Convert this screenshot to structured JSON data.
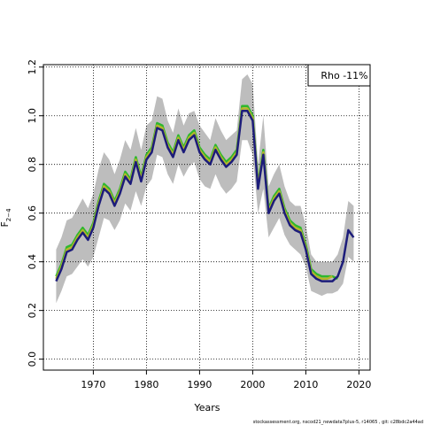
{
  "chart_data": {
    "type": "line",
    "ylabel": "F",
    "ylabel_subscript": "2−4",
    "xlabel": "Years",
    "annotation": "Rho -11%",
    "caption": "stockassessment.org, nscod21_newdata7plus-5, r14065 , git: c28bdc2a44ad",
    "x": [
      1963,
      1964,
      1965,
      1966,
      1967,
      1968,
      1969,
      1970,
      1971,
      1972,
      1973,
      1974,
      1975,
      1976,
      1977,
      1978,
      1979,
      1980,
      1981,
      1982,
      1983,
      1984,
      1985,
      1986,
      1987,
      1988,
      1989,
      1990,
      1991,
      1992,
      1993,
      1994,
      1995,
      1996,
      1997,
      1998,
      1999,
      2000,
      2001,
      2002,
      2003,
      2004,
      2005,
      2006,
      2007,
      2008,
      2009,
      2010,
      2011,
      2012,
      2013,
      2014,
      2015,
      2016,
      2017,
      2018,
      2019
    ],
    "band_color": "#bdbdbd",
    "upper": [
      0.45,
      0.5,
      0.57,
      0.58,
      0.62,
      0.66,
      0.62,
      0.68,
      0.78,
      0.85,
      0.82,
      0.76,
      0.82,
      0.9,
      0.86,
      0.95,
      0.86,
      0.96,
      0.98,
      1.08,
      1.07,
      0.98,
      0.93,
      1.03,
      0.96,
      1.01,
      1.02,
      0.96,
      0.93,
      0.9,
      0.99,
      0.94,
      0.9,
      0.92,
      0.94,
      1.15,
      1.17,
      1.13,
      0.8,
      1.0,
      0.71,
      0.76,
      0.8,
      0.71,
      0.65,
      0.63,
      0.63,
      0.55,
      0.43,
      0.4,
      0.4,
      0.4,
      0.4,
      0.43,
      0.5,
      0.65,
      0.63
    ],
    "lower": [
      0.23,
      0.28,
      0.34,
      0.35,
      0.38,
      0.41,
      0.38,
      0.42,
      0.5,
      0.58,
      0.57,
      0.53,
      0.57,
      0.64,
      0.61,
      0.69,
      0.63,
      0.71,
      0.74,
      0.84,
      0.83,
      0.76,
      0.72,
      0.8,
      0.75,
      0.79,
      0.81,
      0.74,
      0.71,
      0.7,
      0.76,
      0.71,
      0.68,
      0.7,
      0.73,
      0.9,
      0.9,
      0.84,
      0.6,
      0.7,
      0.5,
      0.54,
      0.58,
      0.51,
      0.47,
      0.45,
      0.43,
      0.38,
      0.28,
      0.27,
      0.26,
      0.27,
      0.27,
      0.28,
      0.31,
      0.42,
      0.4
    ],
    "series": [
      {
        "color": "#2db82d",
        "values": [
          0.34,
          0.39,
          0.46,
          0.47,
          0.51,
          0.54,
          0.51,
          0.56,
          0.65,
          0.72,
          0.7,
          0.65,
          0.7,
          0.77,
          0.74,
          0.83,
          0.75,
          0.84,
          0.87,
          0.97,
          0.96,
          0.89,
          0.85,
          0.92,
          0.87,
          0.92,
          0.94,
          0.87,
          0.84,
          0.82,
          0.88,
          0.84,
          0.81,
          0.83,
          0.86,
          1.04,
          1.04,
          1.0,
          0.72,
          0.86,
          0.62,
          0.67,
          0.7,
          0.62,
          0.57,
          0.55,
          0.54,
          0.47,
          0.37,
          0.35,
          0.34,
          0.34,
          0.34,
          0.33,
          null,
          null,
          null
        ]
      },
      {
        "color": "#b5b52a",
        "values": [
          0.33,
          0.38,
          0.45,
          0.46,
          0.5,
          0.53,
          0.5,
          0.55,
          0.64,
          0.71,
          0.69,
          0.64,
          0.69,
          0.76,
          0.73,
          0.82,
          0.74,
          0.83,
          0.86,
          0.96,
          0.95,
          0.88,
          0.84,
          0.91,
          0.86,
          0.91,
          0.93,
          0.86,
          0.83,
          0.81,
          0.87,
          0.83,
          0.8,
          0.82,
          0.85,
          1.03,
          1.03,
          0.99,
          0.71,
          0.85,
          0.61,
          0.66,
          0.69,
          0.61,
          0.56,
          0.54,
          0.53,
          0.46,
          0.36,
          0.34,
          0.33,
          0.33,
          0.34,
          null,
          null,
          null,
          null
        ]
      },
      {
        "color": "#1c1c7a",
        "values": [
          0.32,
          0.37,
          0.44,
          0.45,
          0.49,
          0.52,
          0.49,
          0.54,
          0.63,
          0.7,
          0.68,
          0.63,
          0.68,
          0.75,
          0.72,
          0.81,
          0.73,
          0.82,
          0.85,
          0.95,
          0.94,
          0.87,
          0.83,
          0.9,
          0.85,
          0.9,
          0.92,
          0.85,
          0.82,
          0.8,
          0.86,
          0.82,
          0.79,
          0.81,
          0.84,
          1.02,
          1.02,
          0.98,
          0.7,
          0.84,
          0.6,
          0.65,
          0.68,
          0.6,
          0.55,
          0.53,
          0.52,
          0.45,
          0.35,
          0.33,
          0.32,
          0.32,
          0.32,
          0.34,
          0.4,
          0.53,
          0.5
        ]
      }
    ],
    "xlim": [
      1960.6,
      2022.1
    ],
    "ylim": [
      -0.045,
      1.21
    ],
    "xticks": [
      1970,
      1980,
      1990,
      2000,
      2010,
      2020
    ],
    "yticks": [
      {
        "value": 0,
        "label": "0.0"
      },
      0.2,
      0.4,
      0.6,
      0.8,
      {
        "value": 1,
        "label": "1.0"
      },
      1.2
    ],
    "grid": true
  }
}
